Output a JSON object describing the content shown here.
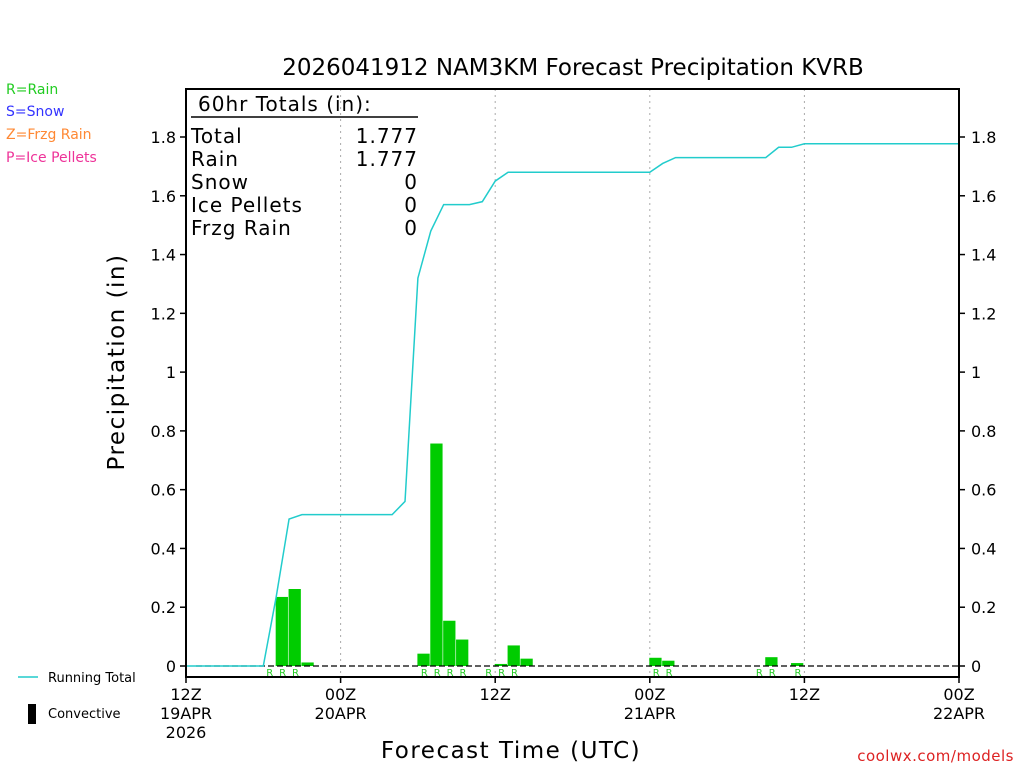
{
  "chart_data": {
    "type": "bar",
    "title": "2026041912 NAM3KM Forecast Precipitation KVRB",
    "xlabel": "Forecast Time (UTC)",
    "ylabel": "Precipitation (in)",
    "ylim": [
      0,
      1.95
    ],
    "y_ticks": [
      0,
      0.2,
      0.4,
      0.6,
      0.8,
      1,
      1.2,
      1.4,
      1.6,
      1.8
    ],
    "y_tick_labels": [
      "0",
      "0.2",
      "0.4",
      "0.6",
      "0.8",
      "1",
      "1.2",
      "1.4",
      "1.6",
      "1.8"
    ],
    "x_range_hours": [
      -1,
      60
    ],
    "x_ticks": [
      {
        "hour": 0,
        "lines": [
          "12Z",
          "19APR",
          "2026"
        ]
      },
      {
        "hour": 12,
        "lines": [
          "00Z",
          "20APR"
        ]
      },
      {
        "hour": 24,
        "lines": [
          "12Z"
        ]
      },
      {
        "hour": 36,
        "lines": [
          "00Z",
          "21APR"
        ]
      },
      {
        "hour": 48,
        "lines": [
          "12Z"
        ]
      },
      {
        "hour": 60,
        "lines": [
          "00Z",
          "22APR"
        ]
      }
    ],
    "hourly_precip": {
      "name": "Rain",
      "hours": [
        7,
        8,
        9,
        18,
        19,
        20,
        21,
        24,
        25,
        26,
        36,
        37,
        44,
        45,
        47
      ],
      "values": [
        0.235,
        0.262,
        0.012,
        0.042,
        0.757,
        0.154,
        0.09,
        0.007,
        0.07,
        0.025,
        0.028,
        0.018,
        0.0,
        0.03,
        0.01
      ]
    },
    "ptype_markers": {
      "hours": [
        7,
        8,
        9,
        19,
        20,
        21,
        22,
        24,
        25,
        26,
        37,
        38,
        45,
        46,
        48
      ],
      "labels": [
        "R",
        "R",
        "R",
        "R",
        "R",
        "R",
        "R",
        "R",
        "R",
        "R",
        "R",
        "R",
        "R",
        "R",
        "R"
      ]
    },
    "running_total": {
      "name": "Running Total",
      "hours": [
        0,
        6,
        7,
        8,
        9,
        10,
        11,
        12,
        16,
        17,
        18,
        19,
        20,
        21,
        22,
        23,
        24,
        25,
        26,
        36,
        37,
        38,
        45,
        46,
        47,
        48,
        60
      ],
      "values": [
        0,
        0,
        0.235,
        0.5,
        0.515,
        0.515,
        0.515,
        0.515,
        0.515,
        0.56,
        1.32,
        1.48,
        1.57,
        1.57,
        1.57,
        1.58,
        1.65,
        1.68,
        1.68,
        1.68,
        1.71,
        1.73,
        1.73,
        1.765,
        1.765,
        1.777,
        1.777
      ]
    },
    "totals_box": {
      "title": "60hr Totals (in):",
      "rows": [
        {
          "label": "Total",
          "value": "1.777"
        },
        {
          "label": "Rain",
          "value": "1.777"
        },
        {
          "label": "Snow",
          "value": "0"
        },
        {
          "label": "Ice Pellets",
          "value": "0"
        },
        {
          "label": "Frzg Rain",
          "value": "0"
        }
      ]
    },
    "grid": "vertical dotted at 00Z/12Z"
  },
  "ptype_legend": [
    {
      "text": "R=Rain",
      "color": "#22cc22"
    },
    {
      "text": "S=Snow",
      "color": "#3333ff"
    },
    {
      "text": "Z=Frzg Rain",
      "color": "#ff8833"
    },
    {
      "text": "P=Ice Pellets",
      "color": "#ee3399"
    }
  ],
  "bottom_legend": {
    "running_total_label": "Running Total",
    "convective_label": "Convective"
  },
  "footer": {
    "credit": "coolwx.com/models"
  },
  "colors": {
    "bar": "#00cc00",
    "running_total": "#22cccc",
    "ptype_marker": "#22cc22",
    "credit": "#dd2222",
    "axis": "#000000"
  }
}
